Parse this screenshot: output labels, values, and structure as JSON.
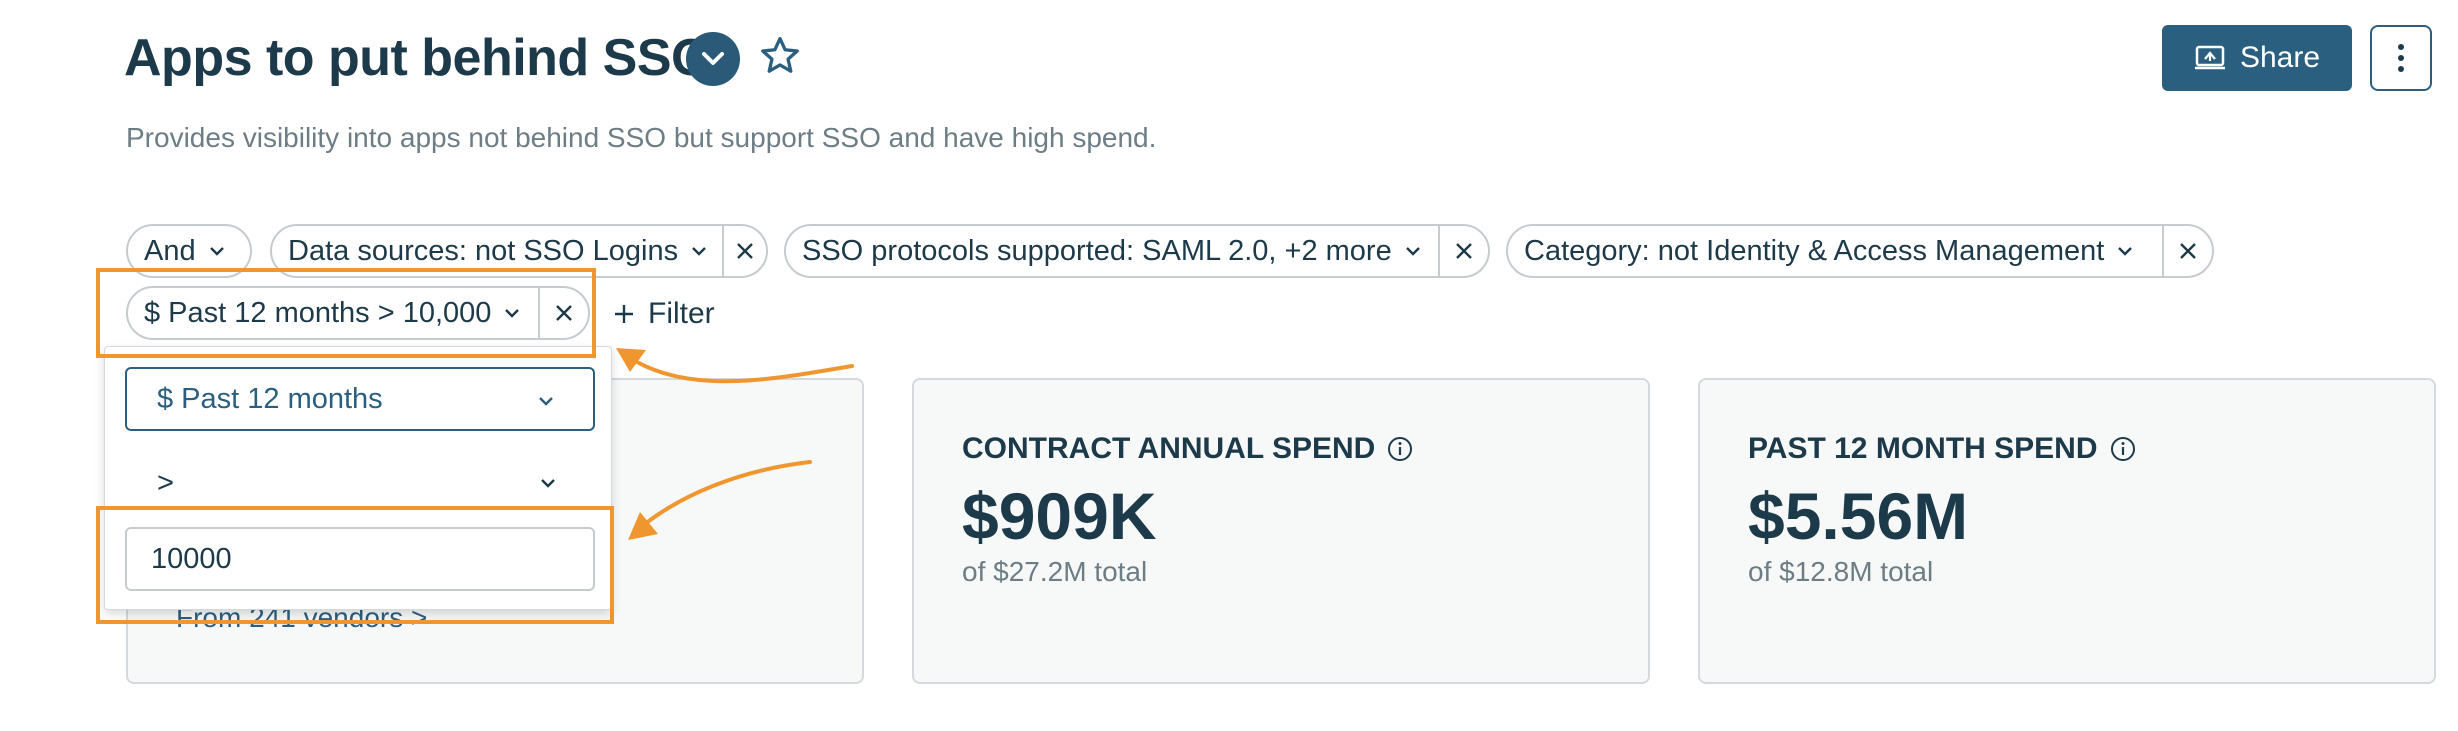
{
  "header": {
    "title": "Apps to put behind SSO",
    "subtitle": "Provides visibility into apps not behind SSO but support SSO and have high spend.",
    "share_label": "Share"
  },
  "filters": {
    "conjunction": "And",
    "chips": [
      "Data sources: not SSO Logins",
      "SSO protocols supported: SAML 2.0, +2 more",
      "Category: not Identity & Access Management",
      "$ Past 12 months > 10,000"
    ],
    "add_filter_label": "Filter"
  },
  "filter_editor": {
    "field": "$ Past 12 months",
    "operator": ">",
    "value": "10000"
  },
  "cards": [
    {
      "label": "",
      "value": "",
      "sub": "",
      "link": "From 241 vendors >"
    },
    {
      "label": "CONTRACT ANNUAL SPEND",
      "value": "$909K",
      "sub": "of $27.2M total"
    },
    {
      "label": "PAST 12 MONTH SPEND",
      "value": "$5.56M",
      "sub": "of $12.8M total"
    }
  ],
  "colors": {
    "primary": "#2b5f80",
    "text": "#1d3a4a",
    "muted": "#6d7d86",
    "annotation": "#f0962e"
  }
}
